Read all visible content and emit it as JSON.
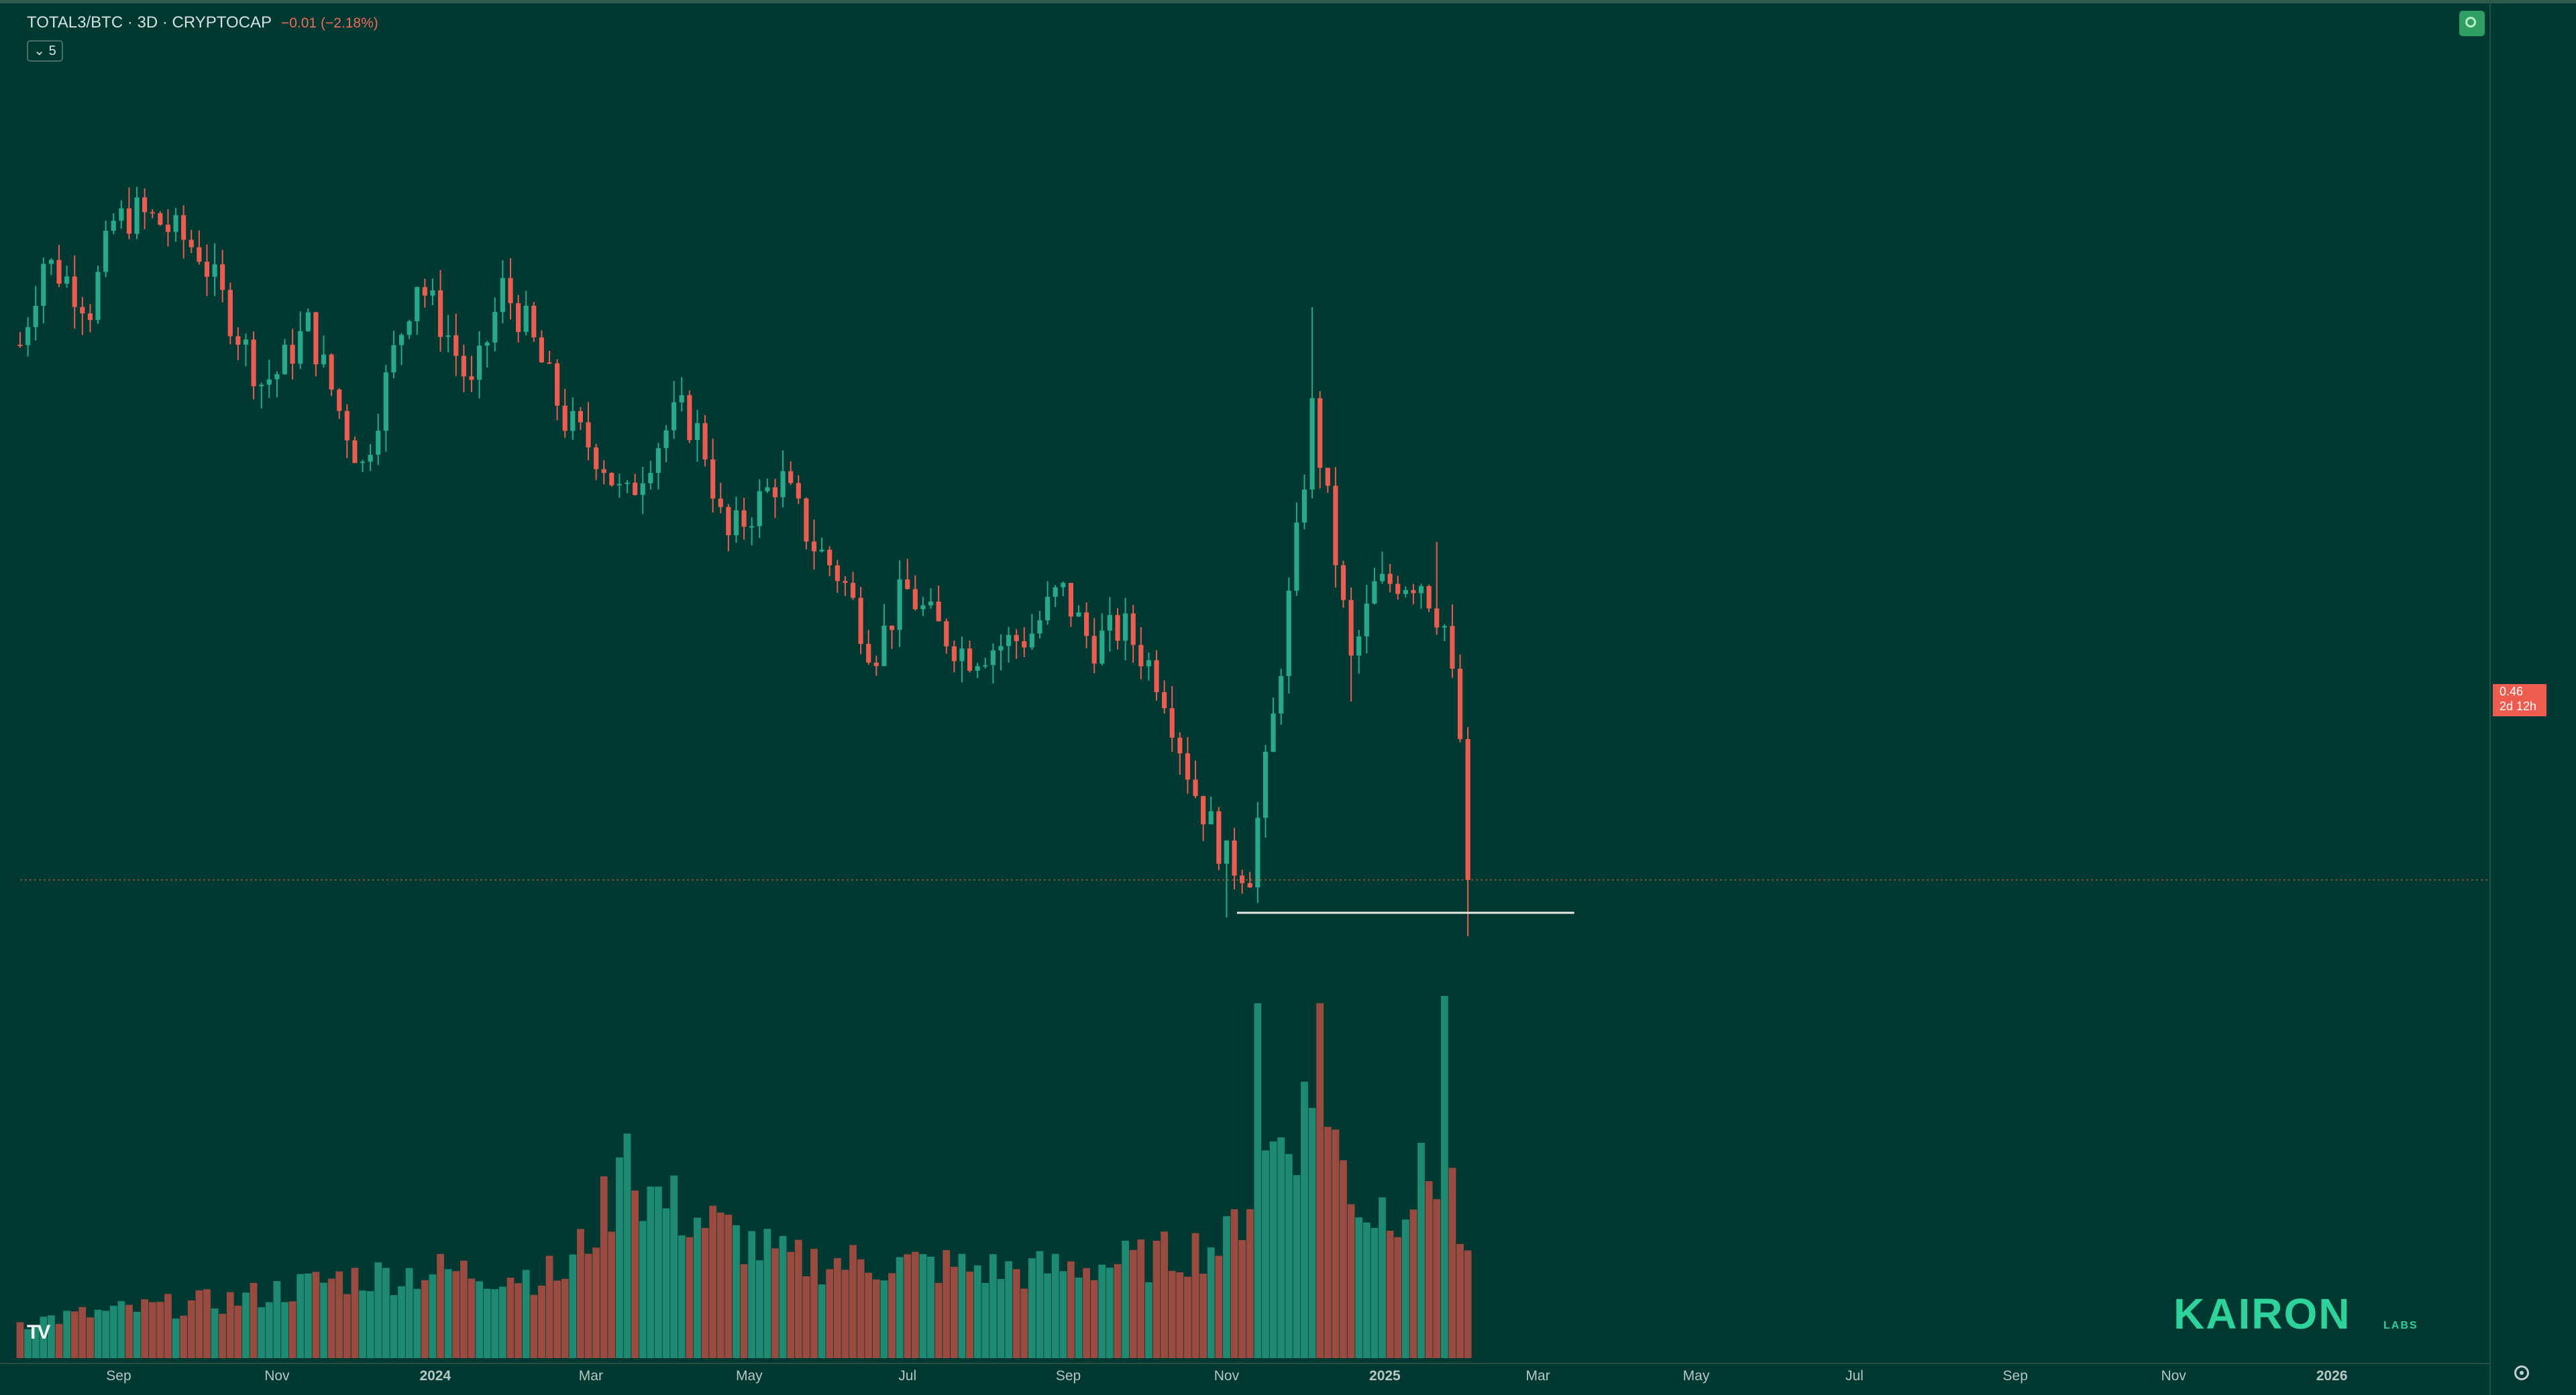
{
  "legend": {
    "symbol": "TOTAL3/BTC · 3D · CRYPTOCAP",
    "change": "−0.01 (−2.18%)"
  },
  "collapse_button": {
    "label": "5"
  },
  "price_tag": {
    "price": "0.46",
    "countdown": "2d 12h"
  },
  "brand": {
    "name": "KAIRON",
    "sub": "LABS"
  },
  "tv_logo": {
    "text": "TV"
  },
  "colors": {
    "background": "#003832",
    "up": "#27a98a",
    "down": "#ee5b4f",
    "up_volume": "#1e8a72",
    "down_volume": "#9b4a40",
    "support_line": "#e8e8e2",
    "brand": "#2dd39a"
  },
  "icons": {
    "live": "refresh-icon",
    "settings": "settings-gear-icon"
  },
  "chart_data": {
    "type": "candlestick",
    "timeframe": "3D",
    "x_ticks": [
      "Sep",
      "Nov",
      "2024",
      "Mar",
      "May",
      "Jul",
      "Sep",
      "Nov",
      "2025",
      "Mar",
      "May",
      "Jul",
      "Sep",
      "Nov",
      "2026"
    ],
    "x_ticks_bold": [
      "2024",
      "2025",
      "2026"
    ],
    "x_tick_dates": [
      "2023-09-01",
      "2023-11-01",
      "2024-01-01",
      "2024-03-01",
      "2024-05-01",
      "2024-07-01",
      "2024-09-01",
      "2024-11-01",
      "2025-01-01",
      "2025-03-01",
      "2025-05-01",
      "2025-07-01",
      "2025-09-01",
      "2025-11-01",
      "2026-01-01"
    ],
    "x_range": [
      "2023-07-25",
      "2026-03-03"
    ],
    "y_range": [
      0.4,
      0.9
    ],
    "last_price": 0.46,
    "support_level": 0.4425,
    "support_span": [
      "2024-11-05",
      "2025-03-15"
    ],
    "price_anchors": [
      {
        "date": "2023-07-25",
        "v": 0.745
      },
      {
        "date": "2023-08-03",
        "v": 0.79
      },
      {
        "date": "2023-08-12",
        "v": 0.78
      },
      {
        "date": "2023-08-21",
        "v": 0.765
      },
      {
        "date": "2023-08-30",
        "v": 0.81
      },
      {
        "date": "2023-09-08",
        "v": 0.815
      },
      {
        "date": "2023-09-17",
        "v": 0.81
      },
      {
        "date": "2023-10-02",
        "v": 0.795
      },
      {
        "date": "2023-10-14",
        "v": 0.76
      },
      {
        "date": "2023-10-26",
        "v": 0.725
      },
      {
        "date": "2023-11-01",
        "v": 0.73
      },
      {
        "date": "2023-11-13",
        "v": 0.755
      },
      {
        "date": "2023-11-25",
        "v": 0.71
      },
      {
        "date": "2023-12-04",
        "v": 0.68
      },
      {
        "date": "2023-12-16",
        "v": 0.74
      },
      {
        "date": "2023-12-25",
        "v": 0.78
      },
      {
        "date": "2024-01-06",
        "v": 0.75
      },
      {
        "date": "2024-01-15",
        "v": 0.72
      },
      {
        "date": "2024-01-27",
        "v": 0.775
      },
      {
        "date": "2024-02-05",
        "v": 0.755
      },
      {
        "date": "2024-02-20",
        "v": 0.705
      },
      {
        "date": "2024-03-05",
        "v": 0.685
      },
      {
        "date": "2024-03-14",
        "v": 0.66
      },
      {
        "date": "2024-03-23",
        "v": 0.685
      },
      {
        "date": "2024-04-04",
        "v": 0.71
      },
      {
        "date": "2024-04-13",
        "v": 0.695
      },
      {
        "date": "2024-04-22",
        "v": 0.64
      },
      {
        "date": "2024-05-01",
        "v": 0.655
      },
      {
        "date": "2024-05-13",
        "v": 0.675
      },
      {
        "date": "2024-05-25",
        "v": 0.64
      },
      {
        "date": "2024-06-06",
        "v": 0.62
      },
      {
        "date": "2024-06-18",
        "v": 0.58
      },
      {
        "date": "2024-06-30",
        "v": 0.615
      },
      {
        "date": "2024-07-12",
        "v": 0.595
      },
      {
        "date": "2024-07-24",
        "v": 0.58
      },
      {
        "date": "2024-08-05",
        "v": 0.585
      },
      {
        "date": "2024-08-17",
        "v": 0.59
      },
      {
        "date": "2024-08-29",
        "v": 0.615
      },
      {
        "date": "2024-09-10",
        "v": 0.585
      },
      {
        "date": "2024-09-22",
        "v": 0.595
      },
      {
        "date": "2024-10-07",
        "v": 0.565
      },
      {
        "date": "2024-10-19",
        "v": 0.51
      },
      {
        "date": "2024-11-01",
        "v": 0.47
      },
      {
        "date": "2024-11-10",
        "v": 0.465
      },
      {
        "date": "2024-11-19",
        "v": 0.545
      },
      {
        "date": "2024-11-28",
        "v": 0.64
      },
      {
        "date": "2024-12-04",
        "v": 0.71
      },
      {
        "date": "2024-12-10",
        "v": 0.66
      },
      {
        "date": "2024-12-19",
        "v": 0.575
      },
      {
        "date": "2024-12-28",
        "v": 0.615
      },
      {
        "date": "2025-01-06",
        "v": 0.62
      },
      {
        "date": "2025-01-15",
        "v": 0.62
      },
      {
        "date": "2025-01-24",
        "v": 0.595
      },
      {
        "date": "2025-01-30",
        "v": 0.535
      },
      {
        "date": "2025-02-03",
        "v": 0.46
      }
    ],
    "volume_anchors": [
      {
        "date": "2023-07-25",
        "v": 0.1
      },
      {
        "date": "2023-09-01",
        "v": 0.13
      },
      {
        "date": "2023-10-15",
        "v": 0.16
      },
      {
        "date": "2023-11-25",
        "v": 0.22
      },
      {
        "date": "2024-01-01",
        "v": 0.24
      },
      {
        "date": "2024-02-20",
        "v": 0.23
      },
      {
        "date": "2024-03-14",
        "v": 0.5
      },
      {
        "date": "2024-04-01",
        "v": 0.42
      },
      {
        "date": "2024-05-15",
        "v": 0.27
      },
      {
        "date": "2024-06-30",
        "v": 0.26
      },
      {
        "date": "2024-08-15",
        "v": 0.24
      },
      {
        "date": "2024-09-30",
        "v": 0.27
      },
      {
        "date": "2024-11-01",
        "v": 0.32
      },
      {
        "date": "2024-11-20",
        "v": 0.6
      },
      {
        "date": "2024-12-05",
        "v": 0.7
      },
      {
        "date": "2024-12-25",
        "v": 0.4
      },
      {
        "date": "2025-01-10",
        "v": 0.45
      },
      {
        "date": "2025-01-25",
        "v": 0.55
      },
      {
        "date": "2025-02-03",
        "v": 0.2
      }
    ],
    "volume_spikes": [
      {
        "date": "2024-03-14",
        "v": 0.62
      },
      {
        "date": "2024-11-13",
        "v": 0.98
      },
      {
        "date": "2024-12-07",
        "v": 0.98
      },
      {
        "date": "2025-01-24",
        "v": 1.0
      }
    ]
  }
}
